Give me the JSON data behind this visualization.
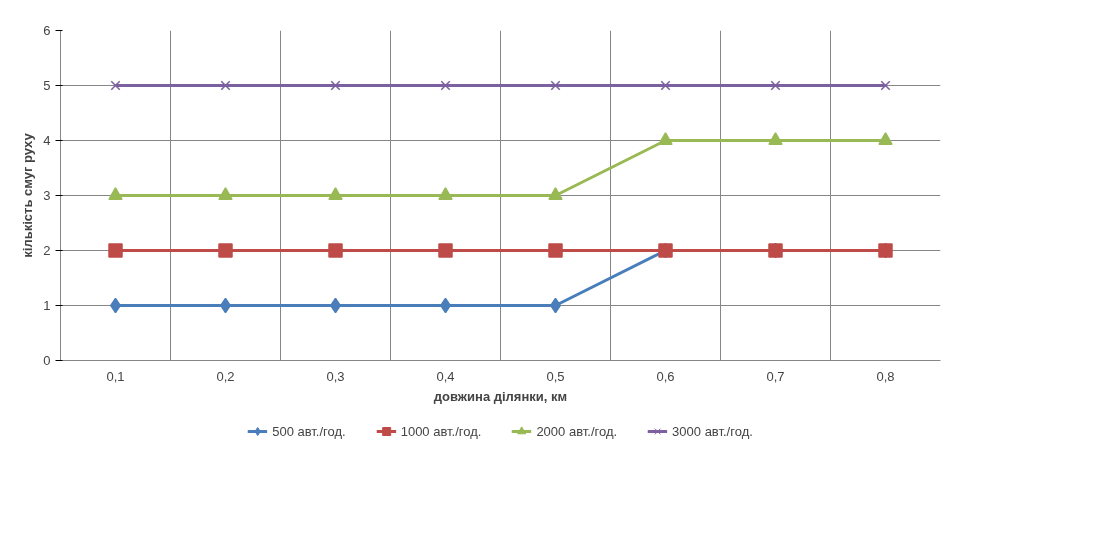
{
  "chart_data": {
    "type": "line",
    "xlabel": "довжина ділянки, км",
    "ylabel": "кількість смуг руху",
    "categories": [
      "0,1",
      "0,2",
      "0,3",
      "0,4",
      "0,5",
      "0,6",
      "0,7",
      "0,8"
    ],
    "series": [
      {
        "name": "500 авт./год.",
        "color": "#4a7ebb",
        "marker": "diamond",
        "values": [
          1,
          1,
          1,
          1,
          1,
          2,
          2,
          2
        ]
      },
      {
        "name": "1000 авт./год.",
        "color": "#be4b48",
        "marker": "square",
        "values": [
          2,
          2,
          2,
          2,
          2,
          2,
          2,
          2
        ]
      },
      {
        "name": "2000 авт./год.",
        "color": "#98b954",
        "marker": "triangle",
        "values": [
          3,
          3,
          3,
          3,
          3,
          4,
          4,
          4
        ]
      },
      {
        "name": "3000 авт./год.",
        "color": "#7d60a0",
        "marker": "x",
        "values": [
          5,
          5,
          5,
          5,
          5,
          5,
          5,
          5
        ]
      }
    ],
    "ylim": [
      0,
      6
    ],
    "yticks": [
      0,
      1,
      2,
      3,
      4,
      5,
      6
    ],
    "grid": true,
    "legend": "bottom",
    "line_style": "solid"
  }
}
